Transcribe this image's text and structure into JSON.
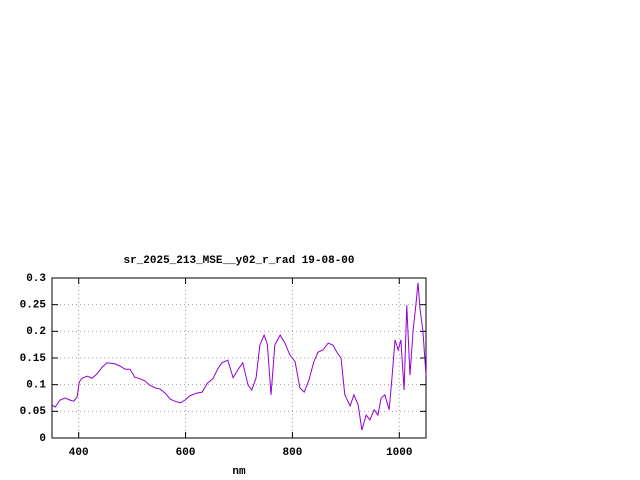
{
  "chart_data": {
    "type": "line",
    "title": "sr_2025_213_MSE__y02_r_rad 19-08-00",
    "x_label": "nm",
    "xlim": [
      350,
      1050
    ],
    "xticks": [
      400,
      600,
      800,
      1000
    ],
    "ylim": [
      0,
      0.3
    ],
    "yticks": [
      0,
      0.05,
      0.1,
      0.15,
      0.2,
      0.25,
      0.3
    ],
    "grid": true,
    "series": [
      {
        "color": "#9400d3",
        "x": [
          350,
          356,
          365,
          374,
          384,
          391,
          397,
          401,
          406,
          416,
          425,
          434,
          444,
          453,
          468,
          477,
          487,
          496,
          505,
          515,
          524,
          533,
          543,
          552,
          562,
          571,
          580,
          590,
          599,
          608,
          620,
          631,
          641,
          651,
          661,
          668,
          679,
          689,
          698,
          707,
          717,
          724,
          732,
          739,
          747,
          753,
          760,
          767,
          777,
          786,
          795,
          805,
          814,
          822,
          831,
          840,
          848,
          857,
          867,
          876,
          883,
          891,
          898,
          908,
          915,
          923,
          930,
          938,
          945,
          953,
          960,
          966,
          973,
          981,
          986,
          992,
          998,
          1003,
          1009,
          1014,
          1020,
          1026,
          1031,
          1035,
          1039,
          1044,
          1050
        ],
        "values": [
          0.062,
          0.058,
          0.071,
          0.075,
          0.071,
          0.069,
          0.077,
          0.105,
          0.112,
          0.116,
          0.112,
          0.12,
          0.133,
          0.141,
          0.139,
          0.135,
          0.129,
          0.129,
          0.114,
          0.111,
          0.107,
          0.099,
          0.094,
          0.092,
          0.084,
          0.073,
          0.069,
          0.066,
          0.071,
          0.079,
          0.084,
          0.086,
          0.103,
          0.111,
          0.131,
          0.141,
          0.146,
          0.113,
          0.128,
          0.141,
          0.099,
          0.09,
          0.113,
          0.174,
          0.193,
          0.176,
          0.081,
          0.174,
          0.193,
          0.178,
          0.156,
          0.143,
          0.094,
          0.086,
          0.109,
          0.143,
          0.161,
          0.165,
          0.178,
          0.174,
          0.161,
          0.15,
          0.081,
          0.06,
          0.081,
          0.062,
          0.015,
          0.043,
          0.034,
          0.053,
          0.043,
          0.075,
          0.081,
          0.053,
          0.109,
          0.184,
          0.165,
          0.184,
          0.09,
          0.249,
          0.118,
          0.203,
          0.249,
          0.291,
          0.24,
          0.203,
          0.118
        ]
      }
    ]
  }
}
